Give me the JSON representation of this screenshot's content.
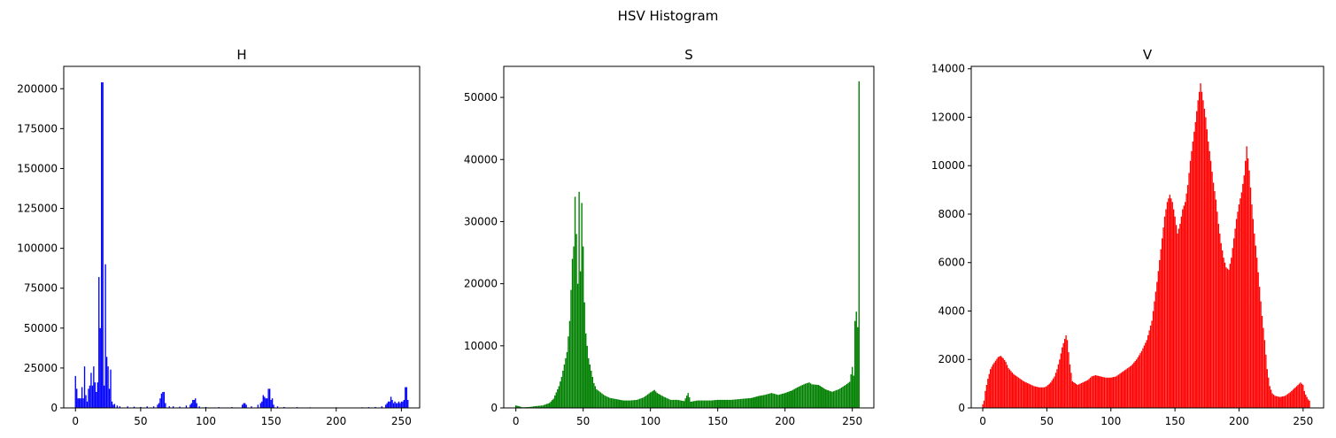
{
  "suptitle": "HSV Histogram",
  "chart_data": [
    {
      "type": "bar",
      "title": "H",
      "color": "#0000ff",
      "xlim": [
        -9,
        264
      ],
      "ylim": [
        0,
        214000
      ],
      "xticks": [
        0,
        50,
        100,
        150,
        200,
        250
      ],
      "yticks": [
        0,
        25000,
        50000,
        75000,
        100000,
        125000,
        150000,
        175000,
        200000
      ],
      "bins": [
        [
          0,
          20000
        ],
        [
          1,
          12000
        ],
        [
          2,
          6000
        ],
        [
          3,
          6000
        ],
        [
          4,
          6000
        ],
        [
          5,
          13000
        ],
        [
          6,
          6000
        ],
        [
          7,
          26000
        ],
        [
          8,
          8000
        ],
        [
          9,
          4000
        ],
        [
          10,
          12000
        ],
        [
          11,
          14000
        ],
        [
          12,
          22000
        ],
        [
          13,
          14000
        ],
        [
          14,
          26000
        ],
        [
          15,
          16000
        ],
        [
          16,
          10000
        ],
        [
          17,
          16000
        ],
        [
          18,
          82000
        ],
        [
          19,
          50000
        ],
        [
          20,
          204000
        ],
        [
          21,
          204000
        ],
        [
          22,
          14000
        ],
        [
          23,
          90000
        ],
        [
          24,
          32000
        ],
        [
          25,
          26000
        ],
        [
          26,
          12000
        ],
        [
          27,
          24000
        ],
        [
          28,
          4000
        ],
        [
          29,
          2000
        ],
        [
          30,
          2500
        ],
        [
          32,
          1500
        ],
        [
          34,
          1000
        ],
        [
          40,
          1000
        ],
        [
          45,
          800
        ],
        [
          50,
          600
        ],
        [
          55,
          1000
        ],
        [
          60,
          1000
        ],
        [
          63,
          2000
        ],
        [
          64,
          3000
        ],
        [
          65,
          6000
        ],
        [
          66,
          9000
        ],
        [
          67,
          10000
        ],
        [
          68,
          10000
        ],
        [
          69,
          3000
        ],
        [
          72,
          1000
        ],
        [
          75,
          1000
        ],
        [
          80,
          800
        ],
        [
          85,
          1500
        ],
        [
          88,
          2000
        ],
        [
          89,
          3000
        ],
        [
          90,
          5000
        ],
        [
          91,
          5000
        ],
        [
          92,
          6000
        ],
        [
          93,
          3000
        ],
        [
          95,
          1000
        ],
        [
          100,
          600
        ],
        [
          110,
          500
        ],
        [
          120,
          500
        ],
        [
          128,
          2000
        ],
        [
          129,
          3000
        ],
        [
          130,
          3000
        ],
        [
          131,
          2000
        ],
        [
          135,
          1000
        ],
        [
          140,
          2000
        ],
        [
          142,
          3000
        ],
        [
          143,
          4000
        ],
        [
          144,
          8000
        ],
        [
          145,
          7000
        ],
        [
          146,
          6000
        ],
        [
          147,
          6000
        ],
        [
          148,
          12000
        ],
        [
          149,
          12000
        ],
        [
          150,
          5000
        ],
        [
          151,
          6000
        ],
        [
          152,
          2000
        ],
        [
          155,
          1000
        ],
        [
          160,
          600
        ],
        [
          170,
          500
        ],
        [
          180,
          400
        ],
        [
          200,
          400
        ],
        [
          220,
          400
        ],
        [
          225,
          500
        ],
        [
          230,
          600
        ],
        [
          235,
          1000
        ],
        [
          238,
          2000
        ],
        [
          239,
          3000
        ],
        [
          240,
          4000
        ],
        [
          241,
          4000
        ],
        [
          242,
          7000
        ],
        [
          243,
          5000
        ],
        [
          244,
          3000
        ],
        [
          245,
          4000
        ],
        [
          246,
          3000
        ],
        [
          247,
          3000
        ],
        [
          248,
          4000
        ],
        [
          249,
          3000
        ],
        [
          250,
          4000
        ],
        [
          251,
          4000
        ],
        [
          252,
          5000
        ],
        [
          253,
          13000
        ],
        [
          254,
          13000
        ],
        [
          255,
          5000
        ]
      ]
    },
    {
      "type": "bar",
      "title": "S",
      "color": "#008000",
      "xlim": [
        -9,
        266
      ],
      "ylim": [
        0,
        55000
      ],
      "xticks": [
        0,
        50,
        100,
        150,
        200,
        250
      ],
      "yticks": [
        0,
        10000,
        20000,
        30000,
        40000,
        50000
      ],
      "points": [
        [
          0,
          400
        ],
        [
          5,
          100
        ],
        [
          10,
          150
        ],
        [
          15,
          300
        ],
        [
          20,
          400
        ],
        [
          25,
          800
        ],
        [
          28,
          1500
        ],
        [
          30,
          2500
        ],
        [
          32,
          3500
        ],
        [
          34,
          5000
        ],
        [
          36,
          7000
        ],
        [
          38,
          9000
        ],
        [
          40,
          14000
        ],
        [
          42,
          24000
        ],
        [
          43,
          26000
        ],
        [
          44,
          34000
        ],
        [
          45,
          28000
        ],
        [
          46,
          20000
        ],
        [
          47,
          34800
        ],
        [
          48,
          22000
        ],
        [
          49,
          33000
        ],
        [
          50,
          26000
        ],
        [
          51,
          17000
        ],
        [
          52,
          12000
        ],
        [
          54,
          8000
        ],
        [
          56,
          6000
        ],
        [
          58,
          4000
        ],
        [
          60,
          3000
        ],
        [
          63,
          2500
        ],
        [
          66,
          2000
        ],
        [
          70,
          1600
        ],
        [
          75,
          1400
        ],
        [
          80,
          1200
        ],
        [
          85,
          1200
        ],
        [
          90,
          1300
        ],
        [
          95,
          1700
        ],
        [
          100,
          2500
        ],
        [
          103,
          2900
        ],
        [
          105,
          2400
        ],
        [
          110,
          1800
        ],
        [
          115,
          1300
        ],
        [
          120,
          1300
        ],
        [
          125,
          1100
        ],
        [
          128,
          2400
        ],
        [
          130,
          1000
        ],
        [
          135,
          1200
        ],
        [
          140,
          1200
        ],
        [
          145,
          1200
        ],
        [
          150,
          1300
        ],
        [
          155,
          1300
        ],
        [
          160,
          1300
        ],
        [
          165,
          1400
        ],
        [
          170,
          1500
        ],
        [
          175,
          1600
        ],
        [
          180,
          1900
        ],
        [
          185,
          2100
        ],
        [
          190,
          2400
        ],
        [
          195,
          2100
        ],
        [
          200,
          2400
        ],
        [
          205,
          2800
        ],
        [
          210,
          3400
        ],
        [
          215,
          3900
        ],
        [
          218,
          4100
        ],
        [
          220,
          3800
        ],
        [
          225,
          3700
        ],
        [
          230,
          3000
        ],
        [
          235,
          2600
        ],
        [
          240,
          3000
        ],
        [
          245,
          3700
        ],
        [
          248,
          4200
        ],
        [
          250,
          6600
        ],
        [
          251,
          5200
        ],
        [
          252,
          14000
        ],
        [
          253,
          15500
        ],
        [
          254,
          13000
        ],
        [
          255,
          52600
        ]
      ]
    },
    {
      "type": "bar",
      "title": "V",
      "color": "#ff0000",
      "xlim": [
        -9,
        266
      ],
      "ylim": [
        0,
        14100
      ],
      "xticks": [
        0,
        50,
        100,
        150,
        200,
        250
      ],
      "yticks": [
        0,
        2000,
        4000,
        6000,
        8000,
        10000,
        12000,
        14000
      ],
      "points": [
        [
          0,
          150
        ],
        [
          1,
          300
        ],
        [
          2,
          700
        ],
        [
          4,
          1200
        ],
        [
          6,
          1600
        ],
        [
          8,
          1800
        ],
        [
          10,
          1950
        ],
        [
          12,
          2100
        ],
        [
          14,
          2150
        ],
        [
          16,
          2050
        ],
        [
          18,
          1900
        ],
        [
          20,
          1650
        ],
        [
          24,
          1400
        ],
        [
          28,
          1250
        ],
        [
          32,
          1100
        ],
        [
          36,
          1000
        ],
        [
          40,
          900
        ],
        [
          44,
          850
        ],
        [
          48,
          850
        ],
        [
          50,
          900
        ],
        [
          53,
          1050
        ],
        [
          56,
          1300
        ],
        [
          58,
          1600
        ],
        [
          60,
          2000
        ],
        [
          62,
          2500
        ],
        [
          64,
          2850
        ],
        [
          65,
          3000
        ],
        [
          66,
          2800
        ],
        [
          68,
          1800
        ],
        [
          70,
          1100
        ],
        [
          74,
          950
        ],
        [
          78,
          1050
        ],
        [
          82,
          1150
        ],
        [
          85,
          1300
        ],
        [
          88,
          1350
        ],
        [
          92,
          1300
        ],
        [
          96,
          1250
        ],
        [
          100,
          1250
        ],
        [
          104,
          1300
        ],
        [
          108,
          1450
        ],
        [
          112,
          1600
        ],
        [
          116,
          1750
        ],
        [
          120,
          2000
        ],
        [
          124,
          2350
        ],
        [
          128,
          2800
        ],
        [
          132,
          3600
        ],
        [
          134,
          4400
        ],
        [
          136,
          5200
        ],
        [
          138,
          6100
        ],
        [
          140,
          7000
        ],
        [
          142,
          7900
        ],
        [
          144,
          8500
        ],
        [
          146,
          8800
        ],
        [
          148,
          8500
        ],
        [
          150,
          7900
        ],
        [
          152,
          7200
        ],
        [
          154,
          7600
        ],
        [
          156,
          8200
        ],
        [
          158,
          8500
        ],
        [
          160,
          9200
        ],
        [
          162,
          10200
        ],
        [
          164,
          11000
        ],
        [
          166,
          11800
        ],
        [
          168,
          12700
        ],
        [
          170,
          13400
        ],
        [
          172,
          12700
        ],
        [
          174,
          12000
        ],
        [
          176,
          11000
        ],
        [
          178,
          10200
        ],
        [
          180,
          9300
        ],
        [
          182,
          8600
        ],
        [
          184,
          7600
        ],
        [
          186,
          6800
        ],
        [
          188,
          6200
        ],
        [
          190,
          5800
        ],
        [
          192,
          5700
        ],
        [
          194,
          6200
        ],
        [
          196,
          7000
        ],
        [
          198,
          7800
        ],
        [
          200,
          8400
        ],
        [
          202,
          8900
        ],
        [
          204,
          9600
        ],
        [
          206,
          10800
        ],
        [
          208,
          9800
        ],
        [
          210,
          8400
        ],
        [
          212,
          7200
        ],
        [
          214,
          6200
        ],
        [
          216,
          5000
        ],
        [
          218,
          3800
        ],
        [
          220,
          2800
        ],
        [
          222,
          1600
        ],
        [
          224,
          900
        ],
        [
          226,
          600
        ],
        [
          228,
          500
        ],
        [
          232,
          450
        ],
        [
          236,
          500
        ],
        [
          240,
          650
        ],
        [
          244,
          850
        ],
        [
          247,
          1000
        ],
        [
          248,
          1050
        ],
        [
          250,
          950
        ],
        [
          251,
          700
        ],
        [
          252,
          550
        ],
        [
          254,
          350
        ],
        [
          255,
          300
        ]
      ]
    }
  ]
}
